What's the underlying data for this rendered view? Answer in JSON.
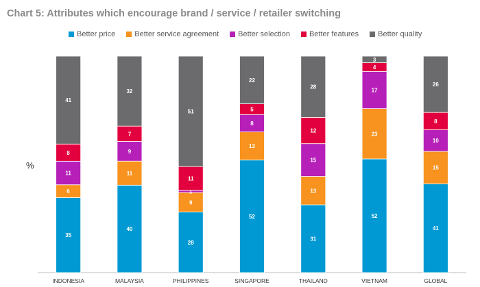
{
  "chart_data": {
    "type": "bar",
    "stacked": true,
    "title": "Chart 5: Attributes which encourage brand / service / retailer switching",
    "ylabel": "%",
    "xlabel": "",
    "legend_position": "top",
    "grid": false,
    "categories": [
      "INDONESIA",
      "MALAYSIA",
      "PHILIPPINES",
      "SINGAPORE",
      "THAILAND",
      "VIETNAM",
      "GLOBAL"
    ],
    "series": [
      {
        "name": "Better price",
        "color": "#0099d3",
        "values": [
          35,
          40,
          28,
          52,
          31,
          52,
          41
        ]
      },
      {
        "name": "Better service agreement",
        "color": "#f7931e",
        "values": [
          6,
          11,
          9,
          13,
          13,
          23,
          15
        ]
      },
      {
        "name": "Better selection",
        "color": "#b620b8",
        "values": [
          11,
          9,
          1,
          8,
          15,
          17,
          10
        ]
      },
      {
        "name": "Better features",
        "color": "#e2003e",
        "values": [
          8,
          7,
          11,
          5,
          12,
          4,
          8
        ]
      },
      {
        "name": "Better quality",
        "color": "#6b6b6d",
        "values": [
          41,
          32,
          51,
          22,
          28,
          3,
          26
        ]
      }
    ]
  }
}
